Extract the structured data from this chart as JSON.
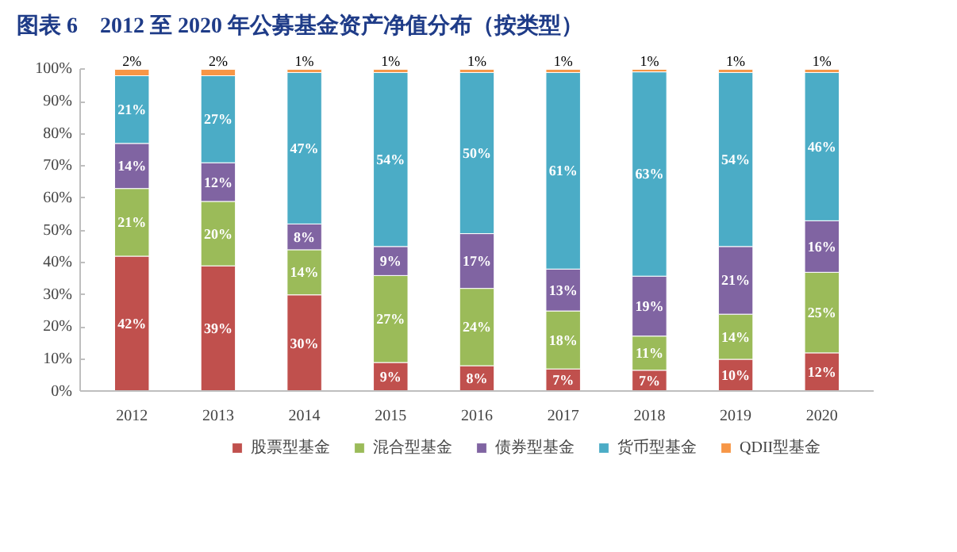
{
  "chart_data": {
    "type": "bar",
    "title": "图表 6　2012 至 2020 年公募基金资产净值分布（按类型）",
    "categories": [
      "2012",
      "2013",
      "2014",
      "2015",
      "2016",
      "2017",
      "2018",
      "2019",
      "2020"
    ],
    "stacked": true,
    "series": [
      {
        "name": "股票型基金",
        "color": "#c0504d",
        "values": [
          42,
          39,
          30,
          9,
          8,
          7,
          6.6,
          10,
          12
        ],
        "value_labels": [
          "42%",
          "39%",
          "30%",
          "9%",
          "8%",
          "7%",
          "7%",
          "10%",
          "12%"
        ]
      },
      {
        "name": "混合型基金",
        "color": "#9bbb59",
        "values": [
          21,
          20,
          14,
          27,
          24,
          18,
          10.6,
          14,
          25
        ],
        "value_labels": [
          "21%",
          "20%",
          "14%",
          "27%",
          "24%",
          "18%",
          "11%",
          "14%",
          "25%"
        ]
      },
      {
        "name": "债券型基金",
        "color": "#8064a2",
        "values": [
          14,
          12,
          8,
          9,
          17,
          13,
          18.6,
          21,
          16
        ],
        "value_labels": [
          "14%",
          "12%",
          "8%",
          "9%",
          "17%",
          "13%",
          "19%",
          "21%",
          "16%"
        ]
      },
      {
        "name": "货币型基金",
        "color": "#4bacc6",
        "values": [
          21,
          27,
          47,
          54,
          50,
          61,
          63.4,
          54,
          46
        ],
        "value_labels": [
          "21%",
          "27%",
          "47%",
          "54%",
          "50%",
          "61%",
          "63%",
          "54%",
          "46%"
        ]
      },
      {
        "name": "QDII型基金",
        "color": "#f79646",
        "values": [
          2,
          2,
          1,
          1,
          1,
          1,
          0.8,
          1,
          1
        ],
        "value_labels": [
          "2%",
          "2%",
          "1%",
          "1%",
          "1%",
          "1%",
          "1%",
          "1%",
          "1%"
        ]
      }
    ],
    "ylim": [
      0,
      100
    ],
    "yticks": [
      {
        "value": 0,
        "label": "0%"
      },
      {
        "value": 10,
        "label": "10%"
      },
      {
        "value": 20,
        "label": "20%"
      },
      {
        "value": 30,
        "label": "30%"
      },
      {
        "value": 40,
        "label": "40%"
      },
      {
        "value": 50,
        "label": "50%"
      },
      {
        "value": 60,
        "label": "60%"
      },
      {
        "value": 70,
        "label": "70%"
      },
      {
        "value": 80,
        "label": "80%"
      },
      {
        "value": 90,
        "label": "90%"
      },
      {
        "value": 100,
        "label": "100%"
      }
    ],
    "grid": false,
    "legend": "bottom"
  }
}
